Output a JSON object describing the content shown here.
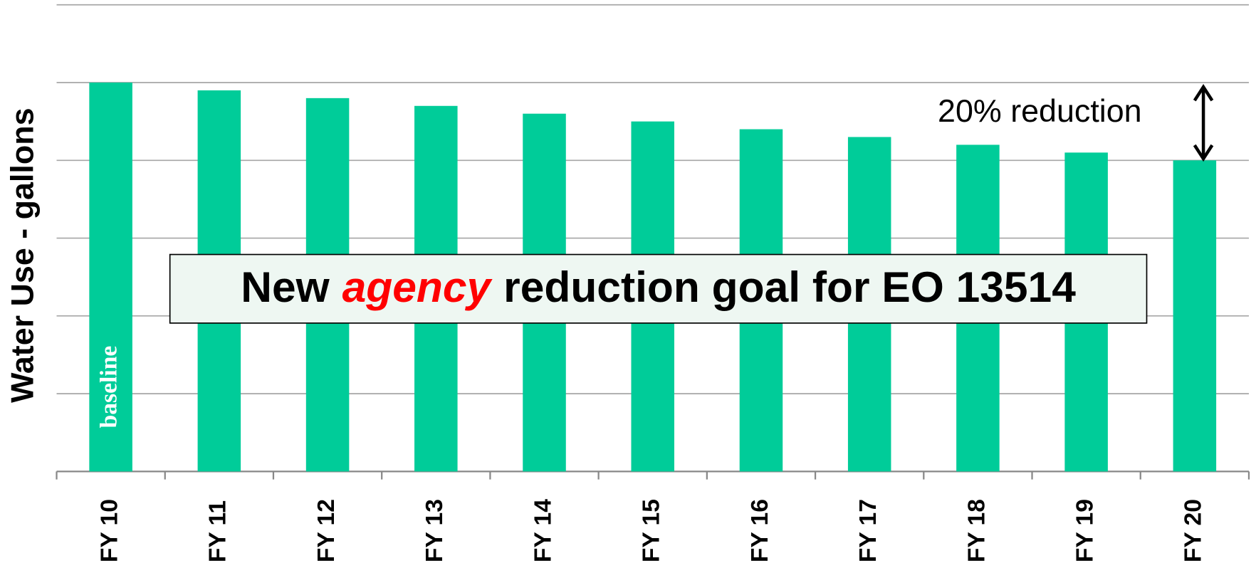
{
  "chart_data": {
    "type": "bar",
    "y_label": "Water Use - gallons",
    "categories": [
      "FY 10",
      "FY 11",
      "FY 12",
      "FY 13",
      "FY 14",
      "FY 15",
      "FY 16",
      "FY 17",
      "FY 18",
      "FY 19",
      "FY 20"
    ],
    "values": [
      5,
      4.9,
      4.8,
      4.7,
      4.6,
      4.5,
      4.4,
      4.3,
      4.2,
      4.1,
      4.0
    ],
    "color": "#00cc99",
    "ylim": [
      0,
      6
    ],
    "yticks": [
      0,
      1,
      2,
      3,
      4,
      5,
      6
    ],
    "grid": true,
    "annotations": {
      "reduction": "20% reduction",
      "baseline": "baseline",
      "goal": [
        "New",
        "agency",
        "reduction goal for EO 13514"
      ]
    }
  }
}
